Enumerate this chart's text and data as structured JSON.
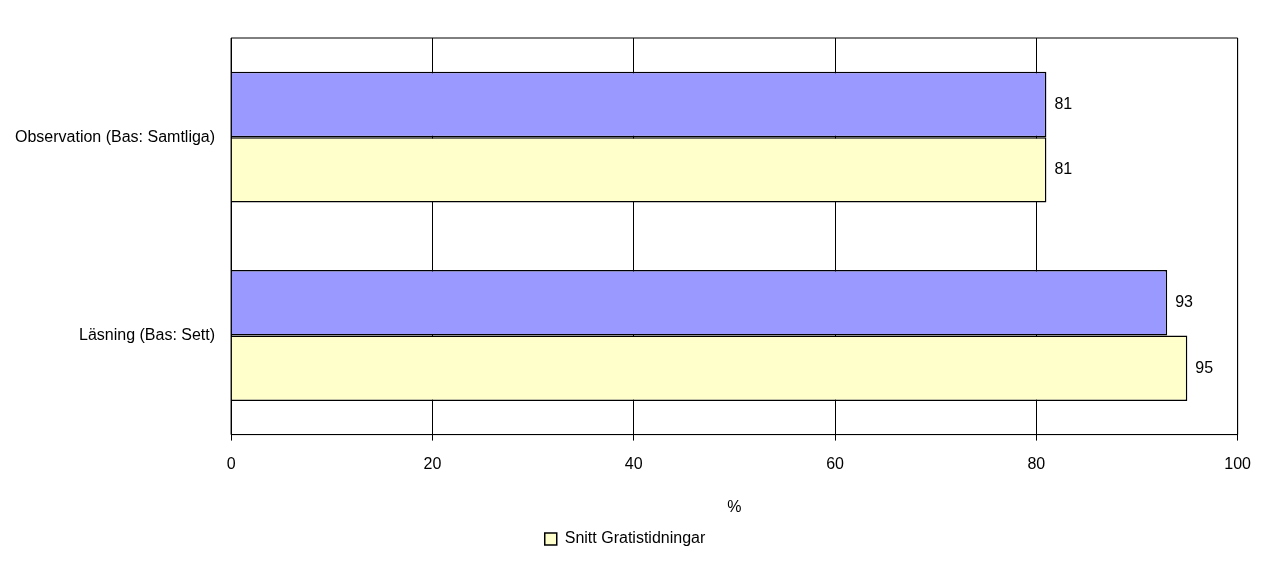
{
  "chart_data": {
    "type": "bar",
    "orientation": "horizontal",
    "xlabel": "%",
    "categories": [
      "Observation (Bas: Samtliga)",
      "Läsning (Bas: Sett)"
    ],
    "series": [
      {
        "color": "#9999ff",
        "values": [
          81,
          93
        ]
      },
      {
        "name": "Snitt Gratistidningar",
        "color": "#ffffcc",
        "values": [
          81,
          95
        ]
      }
    ],
    "xlim": [
      0,
      100
    ],
    "xticks": [
      0,
      20,
      40,
      60,
      80,
      100
    ],
    "grid": "x",
    "legend": "bottom",
    "data_labels": true
  }
}
